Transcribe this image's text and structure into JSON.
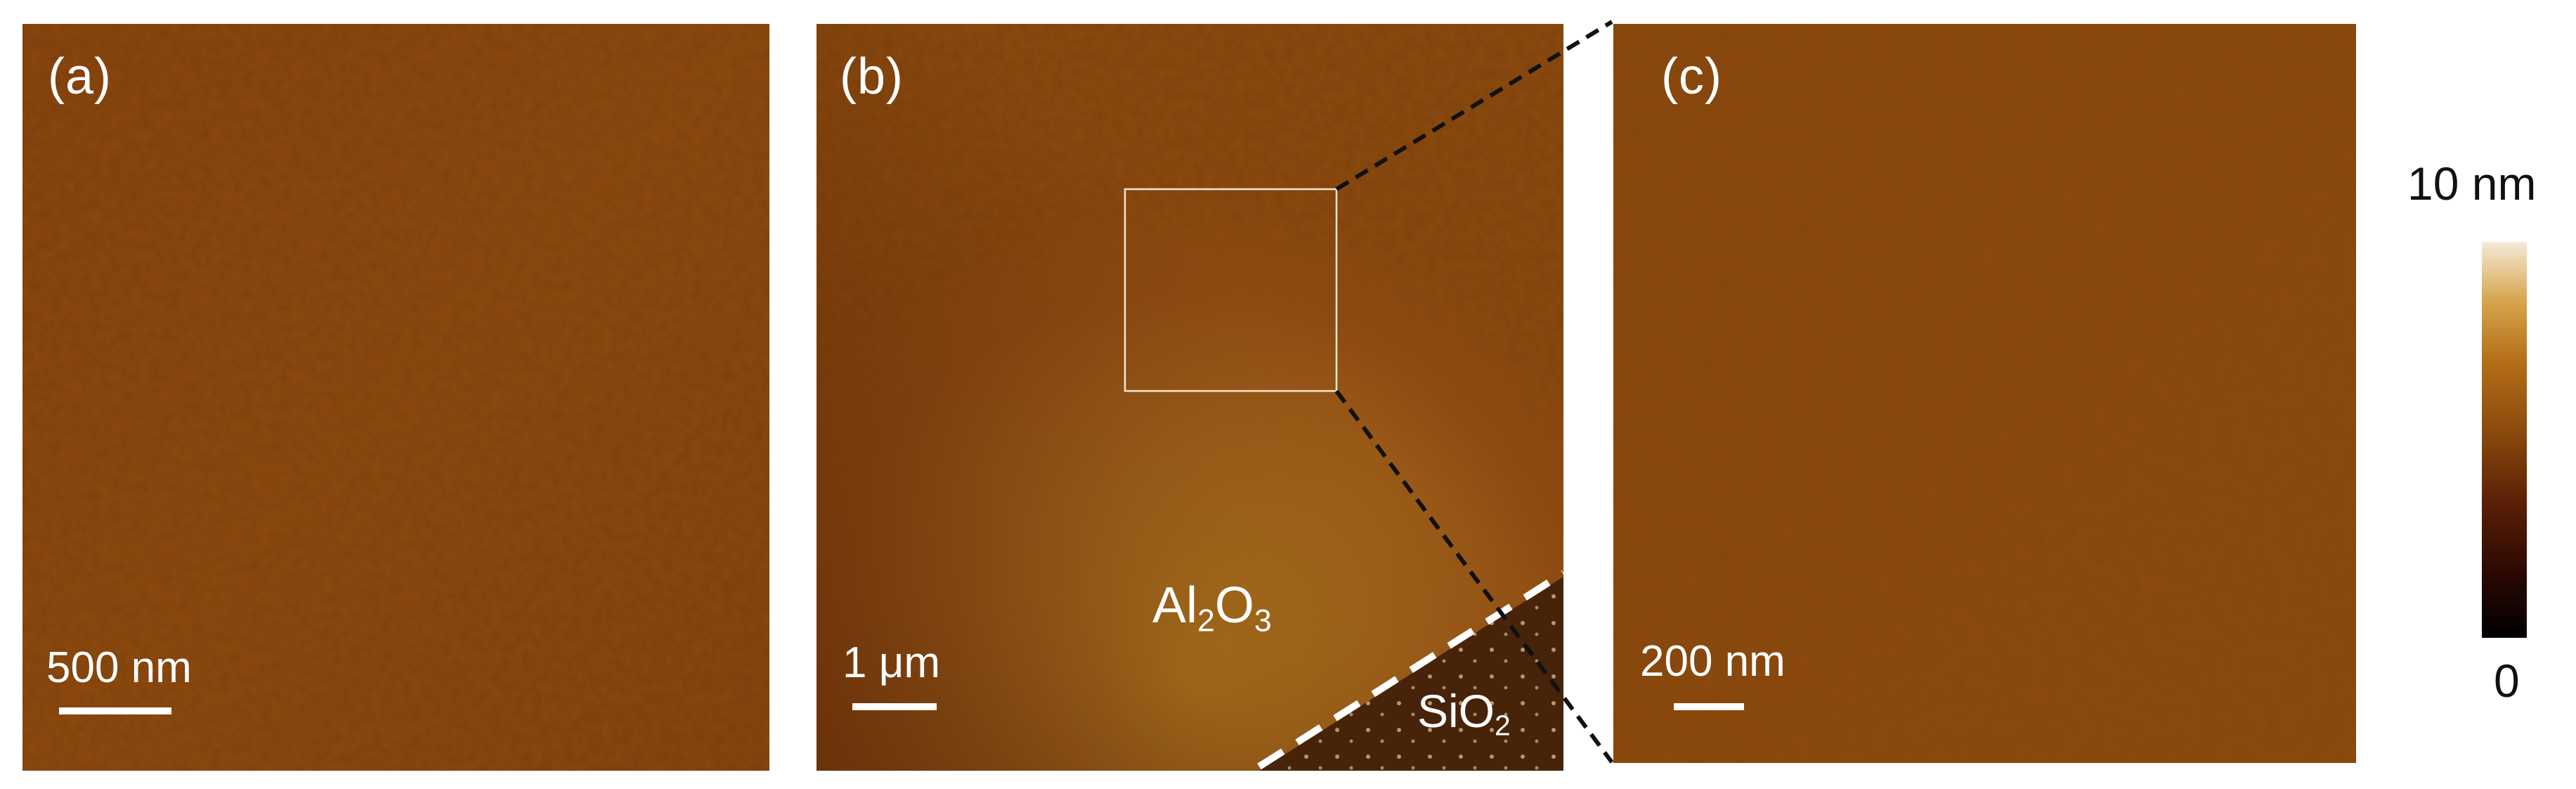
{
  "panels": [
    {
      "label": "(a)",
      "scale_bar": "500 nm"
    },
    {
      "label": "(b)",
      "scale_bar": "1 μm",
      "materials": {
        "top": {
          "base": "Al",
          "sub1": "2",
          "mid": "O",
          "sub2": "3"
        },
        "bottom": {
          "base": "SiO",
          "sub": "2"
        }
      }
    },
    {
      "label": "(c)",
      "scale_bar": "200 nm"
    }
  ],
  "colorbar": {
    "max_label": "10 nm",
    "min_label": "0",
    "colors": [
      "#000000",
      "#2a0802",
      "#5a1f06",
      "#8a4a0c",
      "#b56e18",
      "#d6a54c",
      "#f4ead8"
    ]
  },
  "colors": {
    "afm_base": "#8f4b0f",
    "afm_dark": "#6f330a",
    "afm_light": "#b06d18",
    "sio2_region": "#47230a",
    "zoom_connector": "#111111",
    "inset_box": "#f0e7d2"
  }
}
